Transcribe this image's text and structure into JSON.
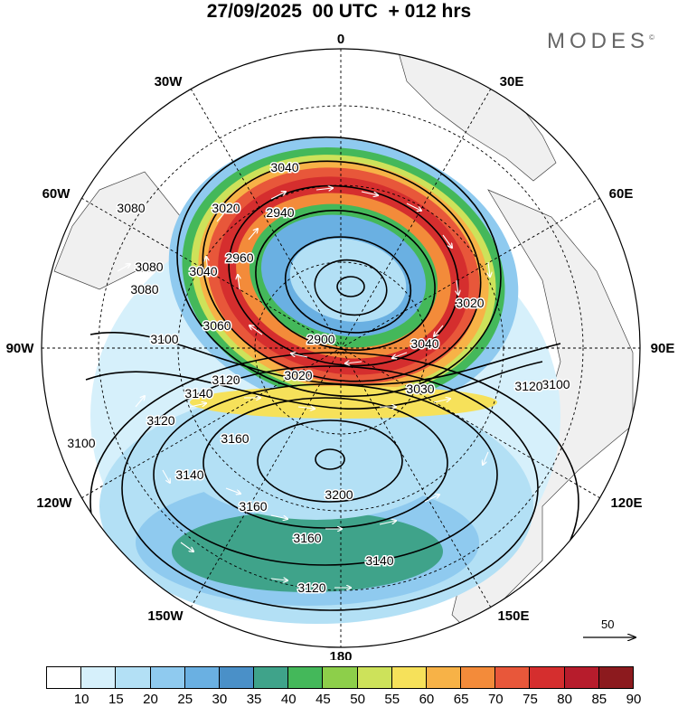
{
  "header": {
    "title": "27/09/2025  00 UTC  + 012 hrs",
    "brand": "MODES",
    "brand_mark": "©"
  },
  "map": {
    "projection": "polar stereographic (south pole)",
    "longitude_labels": [
      "0",
      "30E",
      "60E",
      "90E",
      "120E",
      "150E",
      "180",
      "150W",
      "120W",
      "90W",
      "60W",
      "30W"
    ],
    "contour_labels": [
      "3040",
      "3080",
      "3020",
      "2940",
      "2960",
      "3080",
      "3040",
      "3060",
      "2900",
      "3040",
      "3020",
      "3020",
      "3080",
      "3030",
      "3100",
      "3120",
      "3140",
      "3120",
      "3100",
      "3160",
      "3140",
      "3160",
      "3200",
      "3160",
      "3140",
      "3120",
      "3100",
      "3120"
    ],
    "land_color": "#f0f0f0",
    "contour_color": "#000000",
    "wind_vector_color": "#ffffff"
  },
  "reference_vector": {
    "value": "50"
  },
  "colorbar": {
    "ticks": [
      "10",
      "15",
      "20",
      "25",
      "30",
      "35",
      "40",
      "45",
      "50",
      "55",
      "60",
      "65",
      "70",
      "75",
      "80",
      "85",
      "90"
    ],
    "colors": [
      "#ffffff",
      "#d6f0fb",
      "#b3e0f5",
      "#8fcaef",
      "#6ab0e2",
      "#4a90c8",
      "#3fa38a",
      "#44b85a",
      "#8dcf4a",
      "#cde25a",
      "#f6e15a",
      "#f7b247",
      "#f38b3a",
      "#e8573a",
      "#d52e2e",
      "#b71c2c",
      "#8c1a1e"
    ]
  }
}
